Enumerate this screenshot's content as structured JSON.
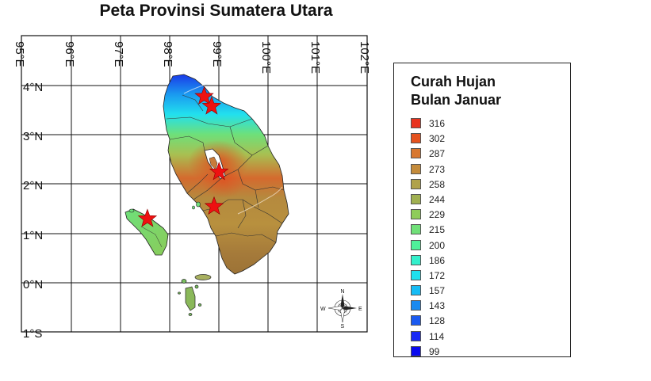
{
  "title": "Peta Provinsi Sumatera Utara",
  "axes": {
    "longitude_labels": [
      "95°E",
      "96°E",
      "97°E",
      "98°E",
      "99°E",
      "100°E",
      "101°E",
      "102°E"
    ],
    "latitude_labels": [
      "4°N",
      "3°N",
      "2°N",
      "1°N",
      "0°N",
      "1°S"
    ]
  },
  "legend": {
    "title_line1": "Curah Hujan",
    "title_line2": "Bulan Januar",
    "items": [
      {
        "value": "316",
        "color": "#e8321e"
      },
      {
        "value": "302",
        "color": "#e5521e"
      },
      {
        "value": "287",
        "color": "#d8772f"
      },
      {
        "value": "273",
        "color": "#c48b3a"
      },
      {
        "value": "258",
        "color": "#b0a24a"
      },
      {
        "value": "244",
        "color": "#a0b050"
      },
      {
        "value": "229",
        "color": "#8fcc5a"
      },
      {
        "value": "215",
        "color": "#70e078"
      },
      {
        "value": "200",
        "color": "#4ef09a"
      },
      {
        "value": "186",
        "color": "#33f0cc"
      },
      {
        "value": "172",
        "color": "#1ee0ee"
      },
      {
        "value": "157",
        "color": "#16bcf5"
      },
      {
        "value": "143",
        "color": "#1a8af0"
      },
      {
        "value": "128",
        "color": "#1a5af0"
      },
      {
        "value": "114",
        "color": "#1a2af5"
      },
      {
        "value": "99",
        "color": "#0a0aee"
      }
    ]
  },
  "compass": {
    "n": "N",
    "s": "S",
    "e": "E",
    "w": "W"
  },
  "markers": [
    {
      "name": "station-1",
      "lon": 98.7,
      "lat": 3.78
    },
    {
      "name": "station-2",
      "lon": 98.85,
      "lat": 3.58
    },
    {
      "name": "station-3",
      "lon": 99.0,
      "lat": 2.25
    },
    {
      "name": "station-4",
      "lon": 98.9,
      "lat": 1.55
    },
    {
      "name": "station-5",
      "lon": 97.55,
      "lat": 1.3
    }
  ],
  "colors": {
    "frame": "#111111",
    "grid": "#111111",
    "marker": "#ee1111"
  }
}
